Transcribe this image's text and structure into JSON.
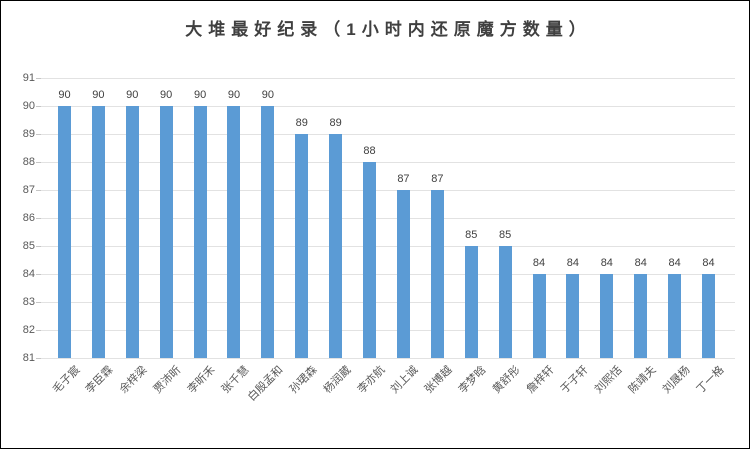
{
  "chart_data": {
    "type": "bar",
    "title": "大堆最好纪录（1小时内还原魔方数量）",
    "categories": [
      "毛子宸",
      "李臣霖",
      "余梓梁",
      "贾沛昕",
      "李昕禾",
      "张千慧",
      "白殷孟和",
      "孙珺森",
      "杨润葳",
      "李亦航",
      "刘上诚",
      "张博越",
      "李梦晗",
      "黄舒彤",
      "詹梓轩",
      "于子轩",
      "刘熙恬",
      "陈靖夫",
      "刘晟杨",
      "丁一格"
    ],
    "values": [
      90,
      90,
      90,
      90,
      90,
      90,
      90,
      89,
      89,
      88,
      87,
      87,
      85,
      85,
      84,
      84,
      84,
      84,
      84,
      84
    ],
    "data_labels": [
      90,
      90,
      90,
      90,
      90,
      90,
      90,
      89,
      89,
      88,
      87,
      87,
      85,
      85,
      84,
      84,
      84,
      84,
      84,
      84
    ],
    "xlabel": "",
    "ylabel": "",
    "ylim": [
      81,
      91
    ],
    "ytick_step": 1,
    "ytick_labels": [
      "81",
      "82",
      "83",
      "84",
      "85",
      "86",
      "87",
      "88",
      "89",
      "90",
      "91"
    ],
    "grid": "horizontal",
    "legend_position": "none",
    "bar_color": "#5b9bd5",
    "gridline_color": "#e2e2e2",
    "axis_text_color": "#595959",
    "title_color": "#404040"
  }
}
